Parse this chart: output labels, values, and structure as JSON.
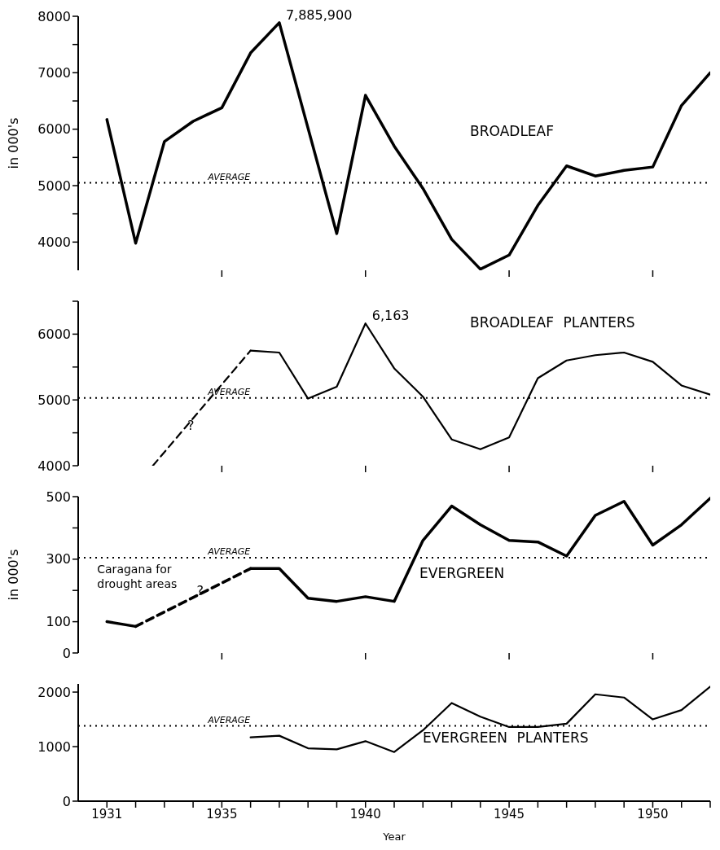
{
  "chart_data": [
    {
      "type": "line",
      "ylabel": "in 000's",
      "xlim": [
        1930,
        1952
      ],
      "xticks": [
        {
          "value": 1935,
          "label": null
        },
        {
          "value": 1940,
          "label": null
        },
        {
          "value": 1945,
          "label": null
        },
        {
          "value": 1950,
          "label": null
        }
      ],
      "ylim": [
        3500,
        8000
      ],
      "yticks": [
        4000,
        {
          "value": 4500,
          "label": null
        },
        5000,
        {
          "value": 5500,
          "label": null
        },
        6000,
        {
          "value": 6500,
          "label": null
        },
        7000,
        {
          "value": 7500,
          "label": null
        },
        8000
      ],
      "tick_labels": "y",
      "grid": false,
      "legend": false,
      "marker": "none",
      "line_style": "solid",
      "series": [
        {
          "name": "BROADLEAF",
          "color": "#000000",
          "x": [
            1931,
            1932,
            1933,
            1934,
            1935,
            1936,
            1937,
            1939,
            1940,
            1941,
            1942,
            1943,
            1944,
            1945,
            1946,
            1947,
            1948,
            1949,
            1950,
            1951,
            1952
          ],
          "values": [
            6170,
            3980,
            5780,
            6140,
            6380,
            7350,
            7885.9,
            4150,
            6600,
            5700,
            4950,
            4050,
            3520,
            3770,
            4650,
            5350,
            5170,
            5270,
            5330,
            6420,
            7000
          ]
        }
      ],
      "ref_lines": [
        {
          "axis": "y",
          "value": 5050,
          "label": "AVERAGE",
          "line_style": "dotted"
        }
      ],
      "annotations": [
        {
          "text": "7,885,900",
          "x": 1937,
          "y": 7885.9
        }
      ]
    },
    {
      "type": "line",
      "xlim": [
        1930,
        1952
      ],
      "xticks": [
        {
          "value": 1935,
          "label": null
        },
        {
          "value": 1940,
          "label": null
        },
        {
          "value": 1945,
          "label": null
        },
        {
          "value": 1950,
          "label": null
        }
      ],
      "ylim": [
        4000,
        6500
      ],
      "yticks": [
        4000,
        {
          "value": 4500,
          "label": null
        },
        5000,
        {
          "value": 5500,
          "label": null
        },
        6000,
        {
          "value": 6500,
          "label": null
        }
      ],
      "tick_labels": "y",
      "grid": false,
      "legend": false,
      "marker": "none",
      "line_style": "solid",
      "series": [
        {
          "color": "#000000",
          "line_style": "dashed",
          "x": [
            1932.6,
            1936
          ],
          "values": [
            4000,
            5750
          ]
        },
        {
          "name": "BROADLEAF PLANTERS",
          "color": "#000000",
          "x": [
            1936,
            1937,
            1938,
            1939,
            1940,
            1941,
            1942,
            1943,
            1944,
            1945,
            1946,
            1947,
            1948,
            1949,
            1950,
            1951,
            1952
          ],
          "values": [
            5750,
            5720,
            5020,
            5200,
            6163,
            5480,
            5050,
            4400,
            4250,
            4430,
            5330,
            5600,
            5680,
            5720,
            5580,
            5220,
            5080
          ]
        }
      ],
      "ref_lines": [
        {
          "axis": "y",
          "value": 5030,
          "label": "AVERAGE",
          "line_style": "dotted"
        }
      ],
      "annotations": [
        {
          "text": "6,163",
          "x": 1940,
          "y": 6163
        },
        {
          "text": "?",
          "x": 1933.57,
          "y": 4500
        }
      ]
    },
    {
      "type": "line",
      "ylabel": "in 000's",
      "xlim": [
        1930,
        1952
      ],
      "xticks": [
        {
          "value": 1935,
          "label": null
        },
        {
          "value": 1940,
          "label": null
        },
        {
          "value": 1945,
          "label": null
        },
        {
          "value": 1950,
          "label": null
        }
      ],
      "ylim": [
        0,
        500
      ],
      "yticks": [
        0,
        100,
        {
          "value": 200,
          "label": null
        },
        300,
        {
          "value": 400,
          "label": null
        },
        500
      ],
      "tick_labels": "y",
      "grid": false,
      "legend": false,
      "marker": "none",
      "line_style": "solid",
      "series": [
        {
          "color": "#000000",
          "x": [
            1931,
            1932
          ],
          "values": [
            100,
            85
          ]
        },
        {
          "color": "#000000",
          "line_style": "dashed",
          "x": [
            1932,
            1936
          ],
          "values": [
            85,
            270
          ]
        },
        {
          "name": "EVERGREEN",
          "color": "#000000",
          "x": [
            1936,
            1937,
            1938,
            1939,
            1940,
            1941,
            1942,
            1943,
            1944,
            1945,
            1946,
            1947,
            1948,
            1949,
            1950,
            1951,
            1952
          ],
          "values": [
            270,
            270,
            175,
            165,
            180,
            165,
            360,
            470,
            410,
            360,
            355,
            310,
            440,
            485,
            345,
            410,
            495
          ]
        }
      ],
      "ref_lines": [
        {
          "axis": "y",
          "value": 305,
          "label": "AVERAGE",
          "line_style": "dotted"
        }
      ],
      "annotations": [
        {
          "text": "Caragana for drought areas",
          "x": 1931,
          "y": 100
        },
        {
          "text": "?",
          "x": 1933.9,
          "y": 175
        }
      ]
    },
    {
      "type": "line",
      "xlabel": "Year",
      "xlim": [
        1930,
        1952
      ],
      "xticks": [
        1931,
        {
          "value": 1932,
          "label": null
        },
        {
          "value": 1933,
          "label": null
        },
        {
          "value": 1934,
          "label": null
        },
        1935,
        {
          "value": 1936,
          "label": null
        },
        {
          "value": 1937,
          "label": null
        },
        {
          "value": 1938,
          "label": null
        },
        {
          "value": 1939,
          "label": null
        },
        1940,
        {
          "value": 1941,
          "label": null
        },
        {
          "value": 1942,
          "label": null
        },
        {
          "value": 1943,
          "label": null
        },
        {
          "value": 1944,
          "label": null
        },
        1945,
        {
          "value": 1946,
          "label": null
        },
        {
          "value": 1947,
          "label": null
        },
        {
          "value": 1948,
          "label": null
        },
        {
          "value": 1949,
          "label": null
        },
        1950,
        {
          "value": 1951,
          "label": null
        },
        {
          "value": 1952,
          "label": null
        }
      ],
      "ylim": [
        0,
        2150
      ],
      "yticks": [
        0,
        1000,
        2000
      ],
      "grid": false,
      "legend": false,
      "marker": "none",
      "line_style": "solid",
      "series": [
        {
          "name": "EVERGREEN PLANTERS",
          "color": "#000000",
          "x": [
            1936,
            1937,
            1938,
            1939,
            1940,
            1941,
            1942,
            1943,
            1944,
            1945,
            1946,
            1947,
            1948,
            1949,
            1950,
            1951,
            1952
          ],
          "values": [
            1170,
            1200,
            970,
            950,
            1100,
            900,
            1300,
            1800,
            1550,
            1360,
            1360,
            1420,
            1960,
            1900,
            1500,
            1670,
            2100
          ]
        }
      ],
      "ref_lines": [
        {
          "axis": "y",
          "value": 1380,
          "label": "AVERAGE",
          "line_style": "dotted"
        }
      ]
    }
  ]
}
